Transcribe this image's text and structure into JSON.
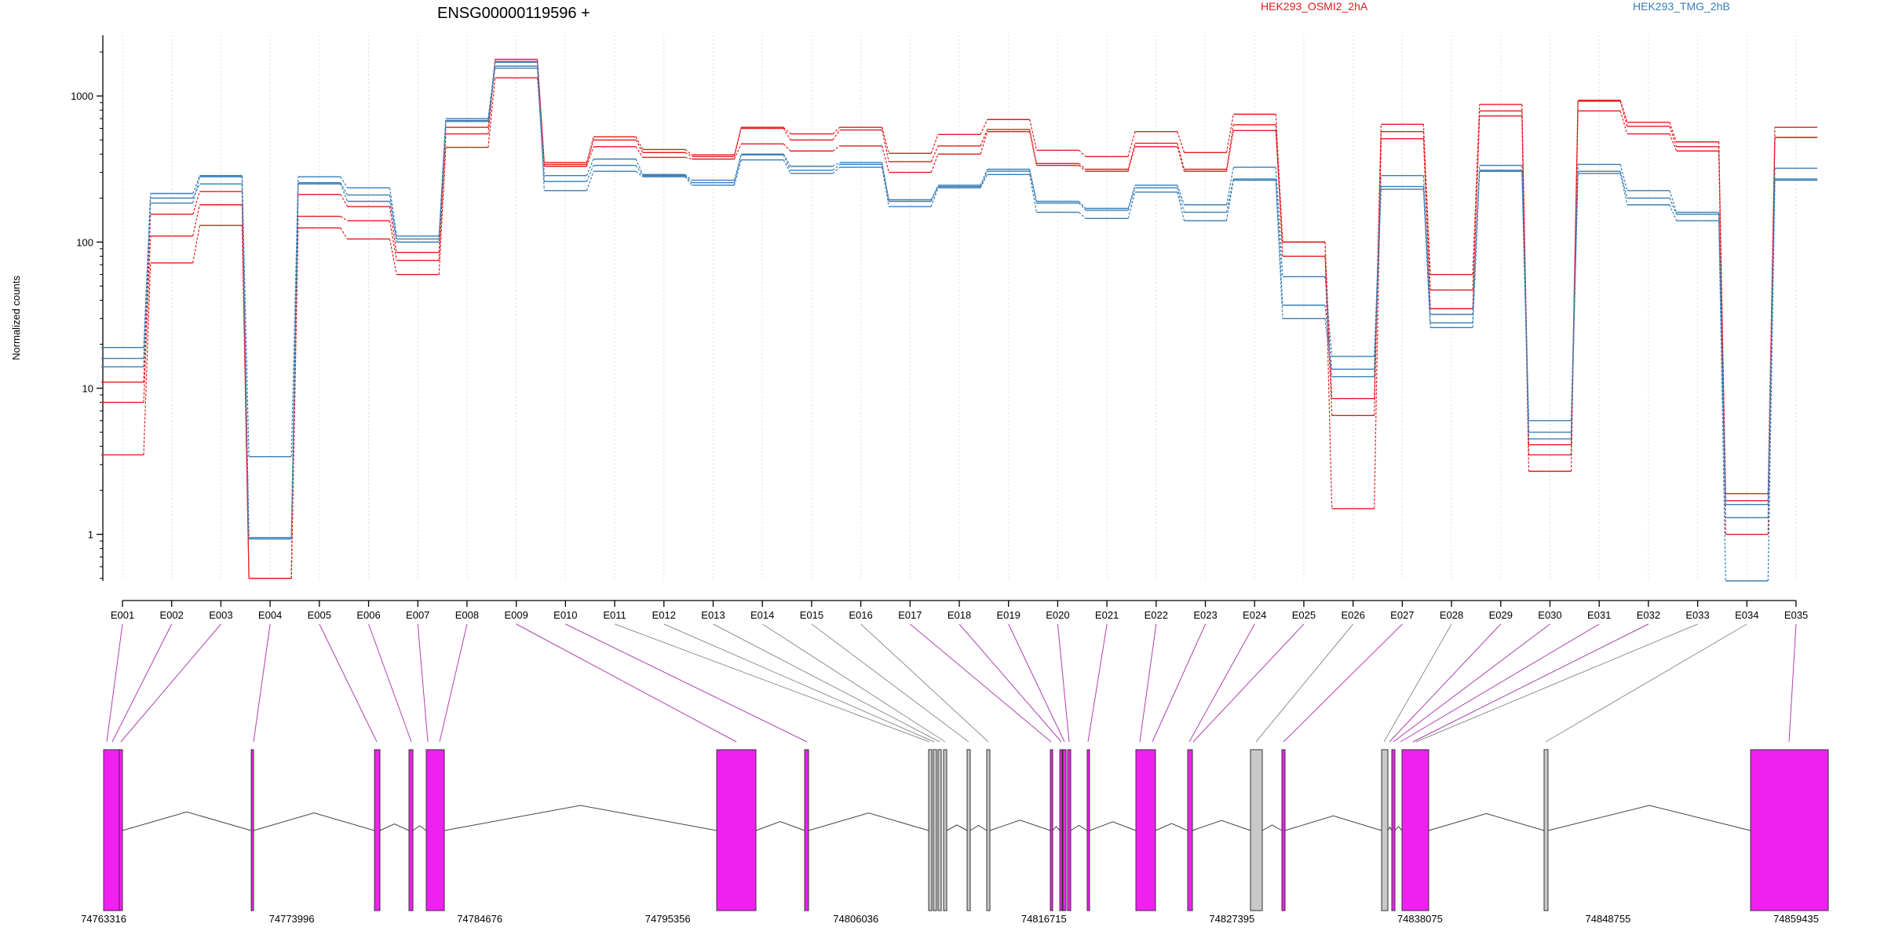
{
  "chart_data": {
    "type": "line",
    "title": "ENSG00000119596 +",
    "ylabel": "Normalized counts",
    "yscale": "log",
    "ylim": [
      0.48,
      2600
    ],
    "yticks": [
      1,
      10,
      100,
      1000
    ],
    "ytick_labels": [
      "1",
      "10",
      "100",
      "1000"
    ],
    "grid": "vertical dotted at exon centers",
    "legend": [
      {
        "name": "HEK293_OSMI2_2hA",
        "color": "#e41a1c"
      },
      {
        "name": "HEK293_TMG_2hB",
        "color": "#377eb8"
      }
    ],
    "categories": [
      "E001",
      "E002",
      "E003",
      "E004",
      "E005",
      "E006",
      "E007",
      "E008",
      "E009",
      "E010",
      "E011",
      "E012",
      "E013",
      "E014",
      "E015",
      "E016",
      "E017",
      "E018",
      "E019",
      "E020",
      "E021",
      "E022",
      "E023",
      "E024",
      "E025",
      "E026",
      "E027",
      "E028",
      "E029",
      "E030",
      "E031",
      "E032",
      "E033",
      "E034",
      "E035"
    ],
    "series": [
      {
        "group": "HEK293_OSMI2_2hA",
        "values": [
          11,
          155,
          222,
          0.5,
          212,
          175,
          85,
          610,
          1780,
          350,
          525,
          430,
          395,
          610,
          550,
          610,
          405,
          545,
          690,
          425,
          385,
          570,
          410,
          750,
          100,
          8.5,
          640,
          60,
          875,
          4.1,
          935,
          660,
          485,
          1.9,
          610
        ]
      },
      {
        "group": "HEK293_OSMI2_2hA",
        "values": [
          8,
          110,
          180,
          0.5,
          150,
          140,
          75,
          550,
          1720,
          340,
          500,
          410,
          385,
          600,
          500,
          585,
          355,
          455,
          590,
          345,
          315,
          475,
          315,
          635,
          80,
          6.5,
          570,
          47,
          790,
          3.5,
          920,
          620,
          450,
          1.7,
          520
        ]
      },
      {
        "group": "HEK293_OSMI2_2hA",
        "values": [
          3.5,
          72,
          130,
          0.5,
          125,
          105,
          60,
          445,
          1330,
          330,
          450,
          380,
          370,
          470,
          420,
          455,
          300,
          400,
          570,
          335,
          305,
          450,
          305,
          580,
          100,
          1.5,
          510,
          35,
          730,
          2.7,
          790,
          550,
          420,
          1.0,
          520
        ]
      },
      {
        "group": "HEK293_TMG_2hB",
        "values": [
          19,
          215,
          285,
          3.4,
          280,
          235,
          110,
          700,
          1700,
          285,
          370,
          290,
          265,
          400,
          330,
          350,
          195,
          245,
          315,
          190,
          170,
          245,
          180,
          325,
          58,
          16.5,
          285,
          32,
          335,
          6.0,
          340,
          225,
          160,
          1.6,
          320
        ]
      },
      {
        "group": "HEK293_TMG_2hB",
        "values": [
          16,
          200,
          250,
          0.95,
          255,
          210,
          105,
          680,
          1600,
          260,
          335,
          285,
          255,
          395,
          310,
          340,
          190,
          240,
          305,
          185,
          165,
          235,
          160,
          270,
          37,
          13.5,
          240,
          28,
          310,
          5.0,
          305,
          200,
          155,
          1.3,
          270
        ]
      },
      {
        "group": "HEK293_TMG_2hB",
        "values": [
          14,
          185,
          280,
          0.93,
          250,
          190,
          100,
          670,
          1550,
          225,
          305,
          280,
          245,
          365,
          295,
          325,
          175,
          235,
          290,
          160,
          145,
          220,
          140,
          265,
          30,
          12,
          230,
          26,
          305,
          4.5,
          295,
          180,
          140,
          0.48,
          265
        ]
      }
    ],
    "gene_model": {
      "coordinate_ticks": [
        "74763316",
        "74773996",
        "74784676",
        "74795356",
        "74806036",
        "74816715",
        "74827395",
        "74838075",
        "74848755",
        "74859435"
      ],
      "exon_highlight_color": "#f020f0",
      "exon_plain_color": "#c8c8c8"
    }
  }
}
